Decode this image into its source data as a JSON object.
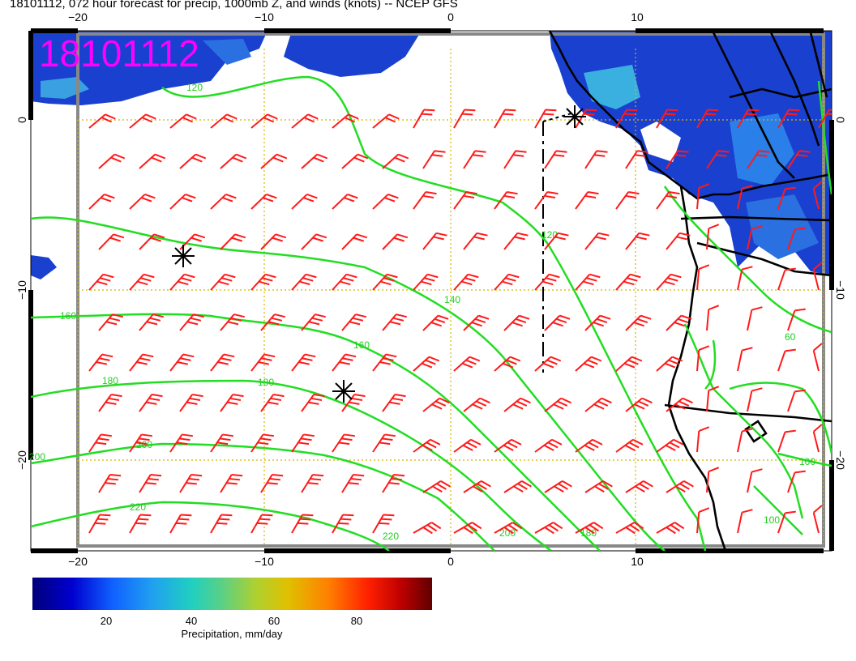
{
  "title": "18101112, 072 hour forecast for precip, 1000mb Z, and winds (knots) -- NCEP GFS",
  "stamp": "18101112",
  "lon_ticks": [
    "−20",
    "−10",
    "0",
    "10"
  ],
  "lat_ticks": [
    "0",
    "−10",
    "−20"
  ],
  "contour_labels": [
    "120",
    "140",
    "160",
    "180",
    "200",
    "220",
    "60",
    "100"
  ],
  "colorbar": {
    "ticks": [
      "20",
      "40",
      "60",
      "80"
    ],
    "label": "Precipitation, mm/day"
  },
  "colors": {
    "stamp": "#ff00ff",
    "contour": "#00e000",
    "barb": "#ff0000",
    "grid": "#d4b400",
    "coast": "#000000"
  },
  "icons": [
    "low-center-icon",
    "wind-barb-icon"
  ]
}
